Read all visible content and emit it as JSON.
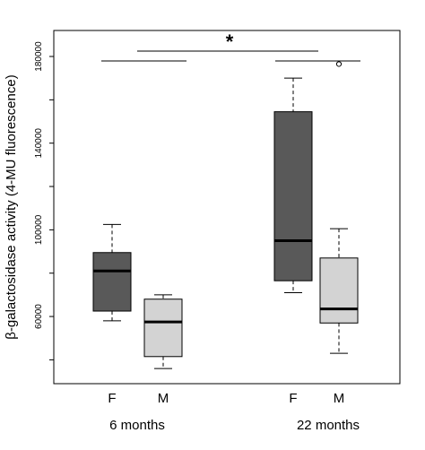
{
  "chart_data": {
    "type": "box",
    "title": "",
    "xlabel": "",
    "ylabel": "β-galactosidase activity  (4-MU fluorescence)",
    "ylim": [
      29000,
      192000
    ],
    "yticks": [
      60000,
      100000,
      140000,
      180000
    ],
    "ytick_labels": [
      "60000",
      "100000",
      "140000",
      "180000"
    ],
    "groups": [
      "6 months",
      "22 months"
    ],
    "categories": [
      "F",
      "M",
      "F",
      "M"
    ],
    "colors": {
      "F": "#595959",
      "M": "#d3d3d3"
    },
    "boxes": [
      {
        "group": "6 months",
        "category": "F",
        "whisker_low": 58000,
        "q1": 62500,
        "median": 81000,
        "q3": 89500,
        "whisker_high": 102500,
        "outliers": []
      },
      {
        "group": "6 months",
        "category": "M",
        "whisker_low": 36000,
        "q1": 41500,
        "median": 57500,
        "q3": 68000,
        "whisker_high": 70000,
        "outliers": []
      },
      {
        "group": "22 months",
        "category": "F",
        "whisker_low": 71000,
        "q1": 76500,
        "median": 95000,
        "q3": 154500,
        "whisker_high": 170000,
        "outliers": []
      },
      {
        "group": "22 months",
        "category": "M",
        "whisker_low": 43000,
        "q1": 57000,
        "median": 63500,
        "q3": 87000,
        "whisker_high": 100500,
        "outliers": [
          176500
        ]
      }
    ],
    "significance": {
      "label": "*",
      "compares": [
        "6 months",
        "22 months"
      ]
    },
    "grid": false,
    "legend": "none"
  }
}
